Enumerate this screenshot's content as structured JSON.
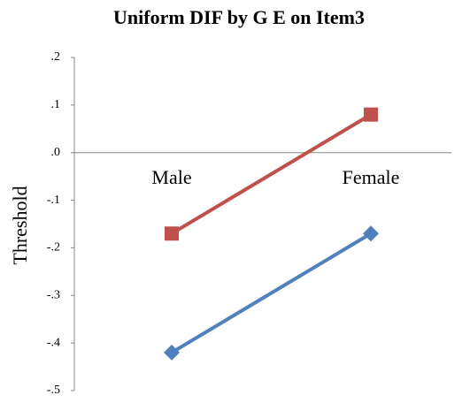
{
  "chart_data": {
    "type": "line",
    "title": "Uniform DIF by G E on Item3",
    "y_label": "Threshold",
    "categories": [
      "Male",
      "Female"
    ],
    "series": [
      {
        "color": "#c0504d",
        "marker": "square",
        "values": [
          -0.17,
          0.08
        ]
      },
      {
        "color": "#4f81bd",
        "marker": "diamond",
        "values": [
          -0.42,
          -0.17
        ]
      }
    ],
    "ylim": [
      -0.5,
      0.2
    ],
    "yticks": [
      {
        "value": 0.2,
        "label": ".2"
      },
      {
        "value": 0.1,
        "label": ".1"
      },
      {
        "value": 0.0,
        "label": ".0"
      },
      {
        "value": -0.1,
        "label": "-.1"
      },
      {
        "value": -0.2,
        "label": "-.2"
      },
      {
        "value": -0.3,
        "label": "-.3"
      },
      {
        "value": -0.4,
        "label": "-.4"
      },
      {
        "value": -0.5,
        "label": "-.5"
      }
    ],
    "grid": false
  }
}
